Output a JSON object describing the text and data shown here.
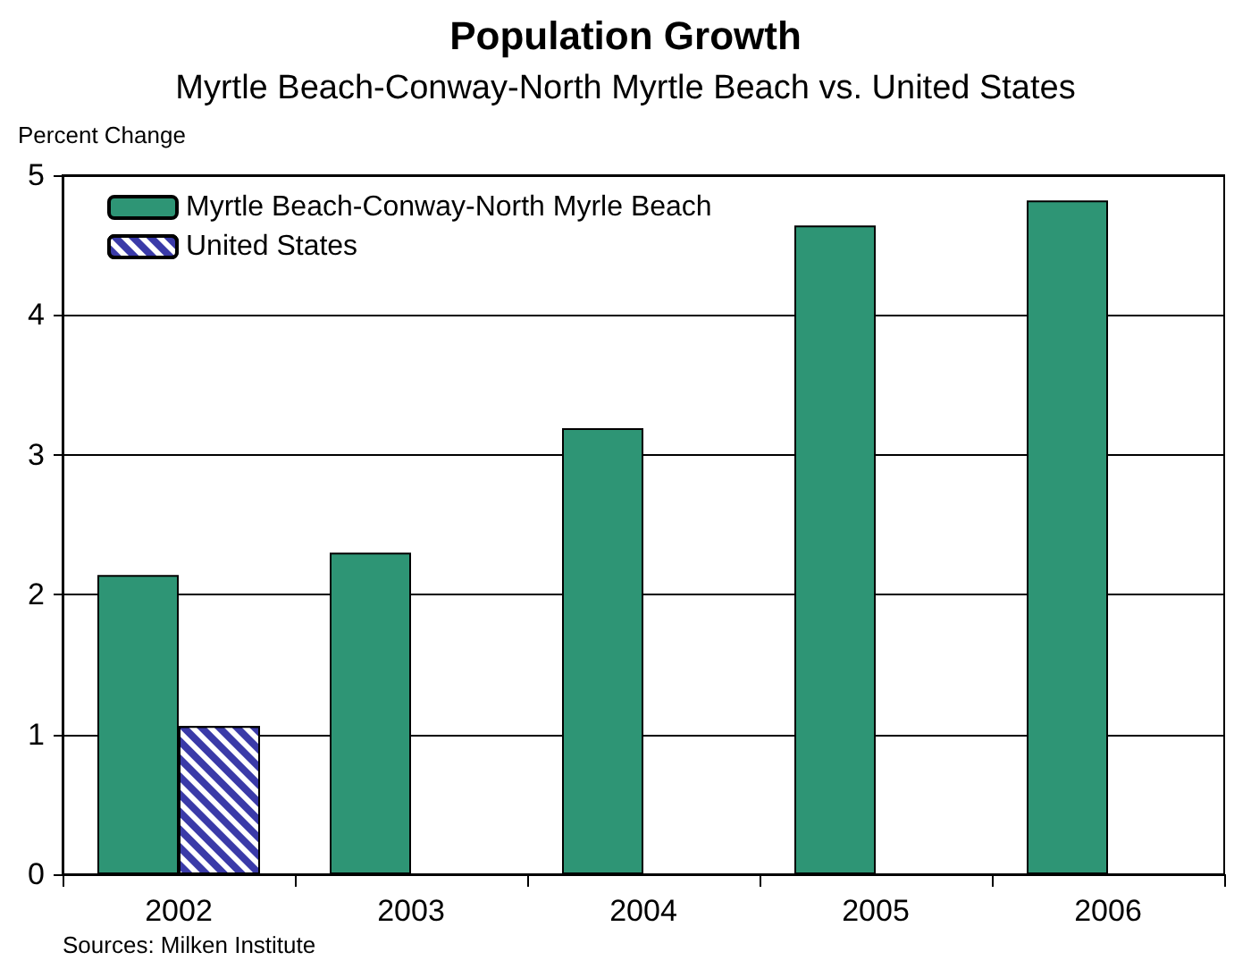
{
  "chart_data": {
    "type": "bar",
    "title": "Population Growth",
    "subtitle": "Myrtle Beach-Conway-North Myrtle Beach vs. United States",
    "ylabel": "Percent Change",
    "categories": [
      "2002",
      "2003",
      "2004",
      "2005",
      "2006"
    ],
    "series": [
      {
        "name": "Myrtle Beach-Conway-North Myrle Beach",
        "color": "#2e9575",
        "values": [
          2.14,
          2.3,
          3.19,
          4.64,
          4.82
        ]
      },
      {
        "name": "United States",
        "color": "#3a3aa8",
        "values": [
          1.06,
          null,
          null,
          null,
          null
        ]
      }
    ],
    "ylim": [
      0,
      5
    ],
    "yticks": [
      0,
      1,
      2,
      3,
      4,
      5
    ],
    "grid": "y",
    "legend": "top left",
    "annotations": [
      "Sources: Milken Institute"
    ]
  }
}
